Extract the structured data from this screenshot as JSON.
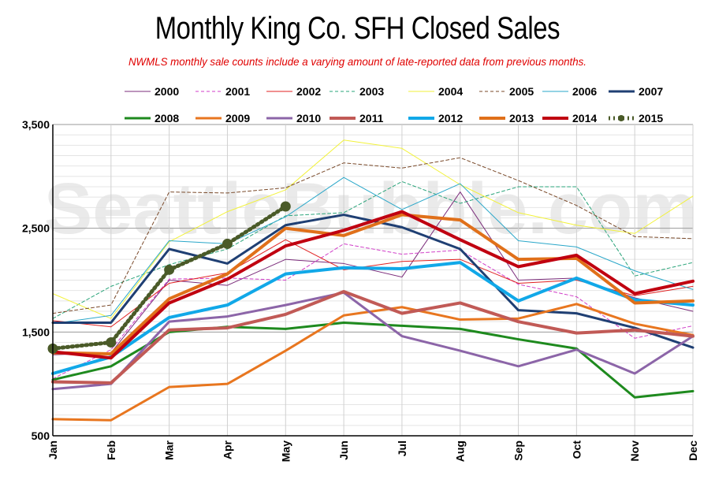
{
  "chart_data": {
    "type": "line",
    "title": "Monthly King Co. SFH Closed Sales",
    "subtitle": "NWMLS monthly sale counts include a varying amount of late-reported  data from previous months.",
    "watermark": "SeattleBubble.com",
    "categories": [
      "Jan",
      "Feb",
      "Mar",
      "Apr",
      "May",
      "Jun",
      "Jul",
      "Aug",
      "Sep",
      "Oct",
      "Nov",
      "Dec"
    ],
    "ylim": [
      500,
      3500
    ],
    "yticks": [
      500,
      1500,
      2500,
      3500
    ],
    "ytick_labels": [
      "500",
      "1,500",
      "2,500",
      "3,500"
    ],
    "grid": true,
    "legend_placement": "top",
    "series": [
      {
        "name": "2000",
        "color": "#7b2c7b",
        "style": "thin",
        "values": [
          1280,
          1300,
          2000,
          1950,
          2200,
          2160,
          2030,
          2850,
          2000,
          2020,
          1830,
          1700
        ]
      },
      {
        "name": "2001",
        "color": "#d03cc8",
        "style": "thin-dash",
        "values": [
          1050,
          1330,
          2010,
          2020,
          2000,
          2350,
          2250,
          2290,
          1960,
          1840,
          1440,
          1560
        ]
      },
      {
        "name": "2002",
        "color": "#e02020",
        "style": "thin",
        "values": [
          1610,
          1550,
          1970,
          2070,
          2390,
          2100,
          2180,
          2200,
          1970,
          2000,
          1850,
          1940
        ]
      },
      {
        "name": "2003",
        "color": "#2aa47a",
        "style": "thin-dash",
        "values": [
          1630,
          1940,
          2150,
          2300,
          2620,
          2650,
          2950,
          2740,
          2900,
          2900,
          2040,
          2170
        ]
      },
      {
        "name": "2004",
        "color": "#f2f23a",
        "style": "thin",
        "values": [
          1870,
          1630,
          2370,
          2660,
          2870,
          3350,
          3270,
          2920,
          2650,
          2530,
          2450,
          2810
        ]
      },
      {
        "name": "2005",
        "color": "#7a4a2a",
        "style": "thin-dash",
        "values": [
          1680,
          1760,
          2850,
          2840,
          2890,
          3130,
          3080,
          3180,
          2960,
          2720,
          2420,
          2400
        ]
      },
      {
        "name": "2006",
        "color": "#2aa7c9",
        "style": "thin",
        "values": [
          1580,
          1660,
          2380,
          2350,
          2610,
          2990,
          2680,
          2930,
          2380,
          2320,
          2090,
          1910
        ]
      },
      {
        "name": "2007",
        "color": "#1f3f73",
        "style": "medium",
        "values": [
          1590,
          1590,
          2300,
          2160,
          2530,
          2630,
          2510,
          2300,
          1710,
          1680,
          1540,
          1350
        ]
      },
      {
        "name": "2008",
        "color": "#1e8a1e",
        "style": "medium",
        "values": [
          1040,
          1170,
          1500,
          1550,
          1530,
          1590,
          1560,
          1530,
          1430,
          1340,
          870,
          930
        ]
      },
      {
        "name": "2009",
        "color": "#e8761f",
        "style": "medium",
        "values": [
          660,
          650,
          970,
          1000,
          1320,
          1660,
          1740,
          1620,
          1630,
          1770,
          1580,
          1470
        ]
      },
      {
        "name": "2010",
        "color": "#8c65a8",
        "style": "medium",
        "values": [
          950,
          1000,
          1600,
          1650,
          1760,
          1880,
          1460,
          1320,
          1170,
          1330,
          1100,
          1460
        ]
      },
      {
        "name": "2011",
        "color": "#c15a56",
        "style": "thick",
        "values": [
          1020,
          1010,
          1520,
          1540,
          1670,
          1890,
          1680,
          1780,
          1600,
          1490,
          1520,
          1460
        ]
      },
      {
        "name": "2012",
        "color": "#11a8e8",
        "style": "thick",
        "values": [
          1100,
          1260,
          1640,
          1760,
          2060,
          2120,
          2110,
          2170,
          1800,
          2020,
          1810,
          1760
        ]
      },
      {
        "name": "2013",
        "color": "#e0701a",
        "style": "thick",
        "values": [
          1300,
          1290,
          1820,
          2060,
          2500,
          2430,
          2630,
          2580,
          2200,
          2210,
          1780,
          1800
        ]
      },
      {
        "name": "2014",
        "color": "#c00010",
        "style": "thick",
        "values": [
          1310,
          1250,
          1780,
          2010,
          2330,
          2480,
          2660,
          2390,
          2130,
          2240,
          1870,
          1990
        ]
      },
      {
        "name": "2015",
        "color": "#4a5a28",
        "style": "dotted-marker",
        "values": [
          1340,
          1400,
          2100,
          2350,
          2710,
          null,
          null,
          null,
          null,
          null,
          null,
          null
        ]
      }
    ]
  }
}
